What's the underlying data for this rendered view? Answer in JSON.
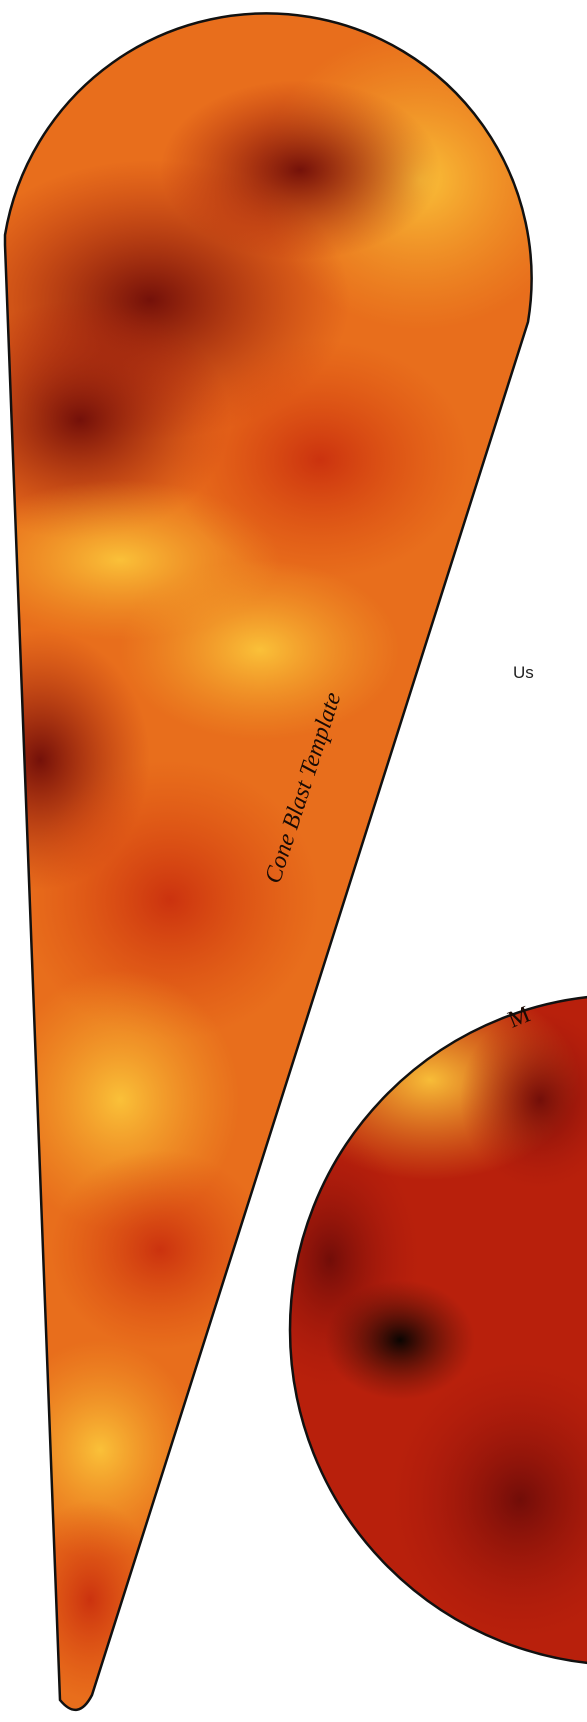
{
  "cone_label": "Cone Blast Template",
  "side_text": "Us",
  "circle_label": "M"
}
